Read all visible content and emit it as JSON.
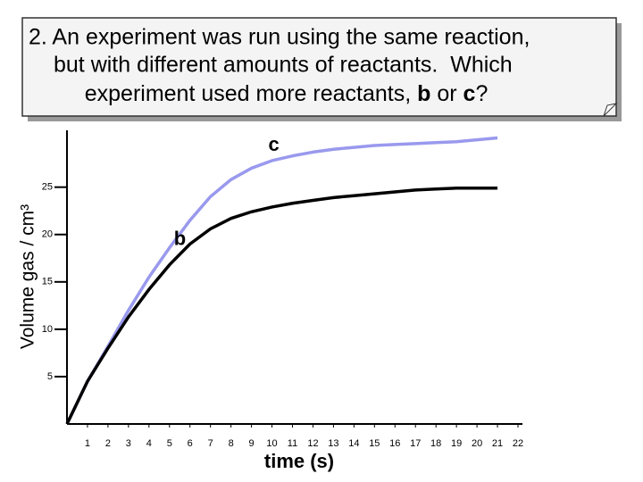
{
  "question": {
    "lines": [
      "2. An experiment was run using the same reaction,",
      "but with different amounts of reactants.  Which"
    ],
    "last_line": [
      "experiment used more reactants, ",
      "b",
      " or ",
      "c",
      "?"
    ]
  },
  "chart_data": {
    "type": "line",
    "x_label": "time (s)",
    "y_label": "Volume gas / cm³",
    "x": [
      0,
      1,
      2,
      3,
      4,
      5,
      6,
      7,
      8,
      9,
      10,
      11,
      12,
      13,
      14,
      15,
      16,
      17,
      18,
      19,
      20,
      21
    ],
    "series": [
      {
        "name": "b",
        "color": "#000000",
        "values": [
          0,
          4.5,
          8,
          11.3,
          14.2,
          16.8,
          19,
          20.6,
          21.7,
          22.4,
          22.9,
          23.3,
          23.6,
          23.9,
          24.1,
          24.3,
          24.5,
          24.7,
          24.8,
          24.9,
          24.9,
          24.9
        ]
      },
      {
        "name": "c",
        "color": "#9999ee",
        "values": [
          0,
          4.5,
          8.2,
          12,
          15.5,
          18.6,
          21.5,
          24,
          25.8,
          27,
          27.8,
          28.3,
          28.7,
          29,
          29.2,
          29.4,
          29.5,
          29.6,
          29.7,
          29.8,
          30,
          30.2
        ]
      }
    ],
    "xlim": [
      0,
      22
    ],
    "ylim": [
      0,
      31
    ],
    "xticks": [
      1,
      2,
      3,
      4,
      5,
      6,
      7,
      8,
      9,
      10,
      11,
      12,
      13,
      14,
      15,
      16,
      17,
      18,
      19,
      20,
      21,
      22
    ],
    "yticks": [
      5,
      10,
      15,
      20,
      25
    ]
  }
}
